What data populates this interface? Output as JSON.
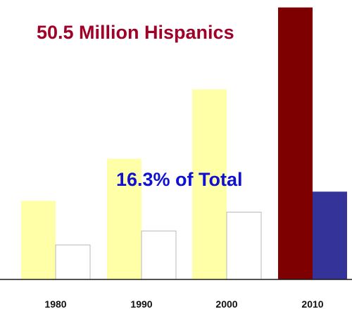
{
  "chart_data": {
    "type": "bar",
    "title": "",
    "xlabel": "",
    "ylabel": "",
    "categories": [
      "1980",
      "1990",
      "2000",
      "2010"
    ],
    "series": [
      {
        "values": [
          14.6,
          22.4,
          35.3,
          50.5
        ],
        "colors": [
          "#ffffa8",
          "#ffffa8",
          "#ffffa8",
          "#7f0000"
        ]
      },
      {
        "values": [
          6.4,
          9.0,
          12.5,
          16.3
        ],
        "colors": [
          "#ffffff",
          "#ffffff",
          "#ffffff",
          "#333399"
        ]
      }
    ],
    "ylim": [
      0,
      51.1
    ],
    "grid": false,
    "annotations": [
      {
        "text": "50.5 Million Hispanics",
        "color": "#a00028"
      },
      {
        "text": "16.3% of Total",
        "color": "#1010d0"
      }
    ]
  }
}
